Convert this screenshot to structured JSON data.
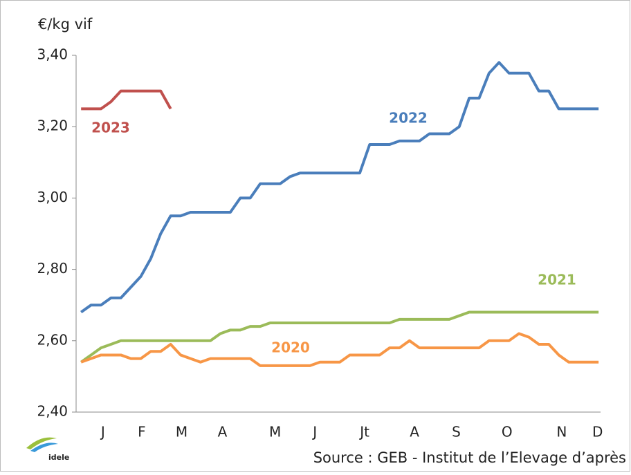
{
  "chart_data": {
    "type": "line",
    "y_label": "€/kg vif",
    "source": "Source : GEB - Institut de l’Elevage d’après",
    "logo_text": "idele",
    "x": [
      1,
      2,
      3,
      4,
      5,
      6,
      7,
      8,
      9,
      10,
      11,
      12,
      13,
      14,
      15,
      16,
      17,
      18,
      19,
      20,
      21,
      22,
      23,
      24,
      25,
      26,
      27,
      28,
      29,
      30,
      31,
      32,
      33,
      34,
      35,
      36,
      37,
      38,
      39,
      40,
      41,
      42,
      43,
      44,
      45,
      46,
      47,
      48,
      49,
      50,
      51,
      52,
      53
    ],
    "xlim": [
      0.5,
      53.2
    ],
    "xticks": [
      {
        "value": 3.2,
        "label": "J"
      },
      {
        "value": 7.1,
        "label": "F"
      },
      {
        "value": 11.1,
        "label": "M"
      },
      {
        "value": 15.2,
        "label": "A"
      },
      {
        "value": 20.5,
        "label": "M"
      },
      {
        "value": 24.5,
        "label": "J"
      },
      {
        "value": 29.5,
        "label": "Jt"
      },
      {
        "value": 34.5,
        "label": "A"
      },
      {
        "value": 38.7,
        "label": "S"
      },
      {
        "value": 43.8,
        "label": "O"
      },
      {
        "value": 49.3,
        "label": "N"
      },
      {
        "value": 52.9,
        "label": "D"
      }
    ],
    "ylim": [
      2.4,
      3.4
    ],
    "yticks": [
      {
        "value": 2.4,
        "label": "2,40"
      },
      {
        "value": 2.6,
        "label": "2,60"
      },
      {
        "value": 2.8,
        "label": "2,80"
      },
      {
        "value": 3.0,
        "label": "3,00"
      },
      {
        "value": 3.2,
        "label": "3,20"
      },
      {
        "value": 3.4,
        "label": "3,40"
      }
    ],
    "series": [
      {
        "name": "2023",
        "color": "#c0504d",
        "values": [
          3.25,
          3.25,
          3.25,
          3.27,
          3.3,
          3.3,
          3.3,
          3.3,
          3.3,
          3.25,
          null,
          null,
          null,
          null,
          null,
          null,
          null,
          null,
          null,
          null,
          null,
          null,
          null,
          null,
          null,
          null,
          null,
          null,
          null,
          null,
          null,
          null,
          null,
          null,
          null,
          null,
          null,
          null,
          null,
          null,
          null,
          null,
          null,
          null,
          null,
          null,
          null,
          null,
          null,
          null,
          null,
          null,
          null
        ]
      },
      {
        "name": "2022",
        "color": "#4a7ebb",
        "values": [
          2.68,
          2.7,
          2.7,
          2.72,
          2.72,
          2.75,
          2.78,
          2.83,
          2.9,
          2.95,
          2.95,
          2.96,
          2.96,
          2.96,
          2.96,
          2.96,
          3.0,
          3.0,
          3.04,
          3.04,
          3.04,
          3.06,
          3.07,
          3.07,
          3.07,
          3.07,
          3.07,
          3.07,
          3.07,
          3.15,
          3.15,
          3.15,
          3.16,
          3.16,
          3.16,
          3.18,
          3.18,
          3.18,
          3.2,
          3.28,
          3.28,
          3.35,
          3.38,
          3.35,
          3.35,
          3.35,
          3.3,
          3.3,
          3.25,
          3.25,
          3.25,
          3.25,
          3.25
        ]
      },
      {
        "name": "2021",
        "color": "#9bbb59",
        "values": [
          2.54,
          2.56,
          2.58,
          2.59,
          2.6,
          2.6,
          2.6,
          2.6,
          2.6,
          2.6,
          2.6,
          2.6,
          2.6,
          2.6,
          2.62,
          2.63,
          2.63,
          2.64,
          2.64,
          2.65,
          2.65,
          2.65,
          2.65,
          2.65,
          2.65,
          2.65,
          2.65,
          2.65,
          2.65,
          2.65,
          2.65,
          2.65,
          2.66,
          2.66,
          2.66,
          2.66,
          2.66,
          2.66,
          2.67,
          2.68,
          2.68,
          2.68,
          2.68,
          2.68,
          2.68,
          2.68,
          2.68,
          2.68,
          2.68,
          2.68,
          2.68,
          2.68,
          2.68
        ]
      },
      {
        "name": "2020",
        "color": "#f79646",
        "values": [
          2.54,
          2.55,
          2.56,
          2.56,
          2.56,
          2.55,
          2.55,
          2.57,
          2.57,
          2.59,
          2.56,
          2.55,
          2.54,
          2.55,
          2.55,
          2.55,
          2.55,
          2.55,
          2.53,
          2.53,
          2.53,
          2.53,
          2.53,
          2.53,
          2.54,
          2.54,
          2.54,
          2.56,
          2.56,
          2.56,
          2.56,
          2.58,
          2.58,
          2.6,
          2.58,
          2.58,
          2.58,
          2.58,
          2.58,
          2.58,
          2.58,
          2.6,
          2.6,
          2.6,
          2.62,
          2.61,
          2.59,
          2.59,
          2.56,
          2.54,
          2.54,
          2.54,
          2.54
        ]
      }
    ]
  }
}
